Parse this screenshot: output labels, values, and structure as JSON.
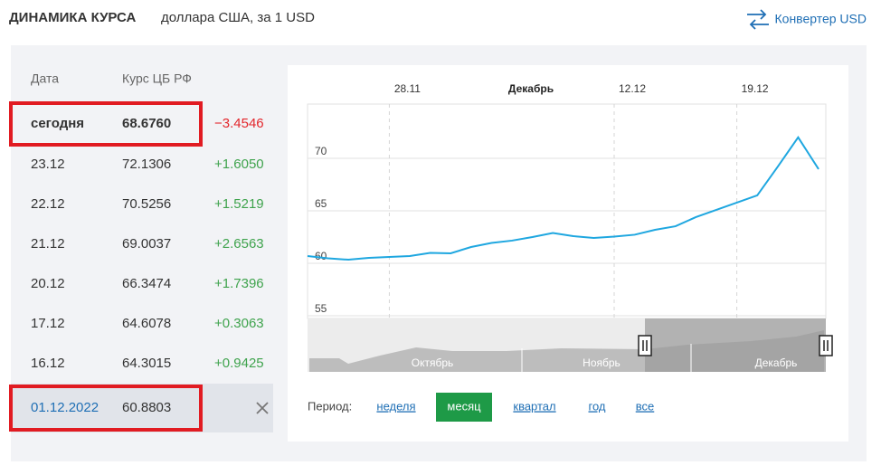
{
  "header": {
    "title": "ДИНАМИКА КУРСА",
    "subtitle": "доллара США, за 1 USD",
    "converter": "Конвертер USD"
  },
  "table": {
    "headers": [
      "Дата",
      "Курс ЦБ РФ"
    ],
    "rows": [
      [
        "сегодня",
        "68.6760",
        "−3.4546"
      ],
      [
        "23.12",
        "72.1306",
        "+1.6050"
      ],
      [
        "22.12",
        "70.5256",
        "+1.5219"
      ],
      [
        "21.12",
        "69.0037",
        "+2.6563"
      ],
      [
        "20.12",
        "66.3474",
        "+1.7396"
      ],
      [
        "17.12",
        "64.6078",
        "+0.3063"
      ],
      [
        "16.12",
        "64.3015",
        "+0.9425"
      ]
    ],
    "selected": [
      "01.12.2022",
      "60.8803"
    ]
  },
  "chart_data": {
    "type": "line",
    "categories": [
      null,
      null,
      null,
      null,
      "28.11",
      null,
      null,
      null,
      null,
      null,
      null,
      null,
      null,
      null,
      null,
      "12.12",
      null,
      null,
      null,
      null,
      null,
      "19.12",
      null,
      null,
      null,
      null
    ],
    "values": [
      60.69,
      60.47,
      60.34,
      60.52,
      60.6,
      60.69,
      60.99,
      60.95,
      61.55,
      61.94,
      62.16,
      62.5,
      62.89,
      62.59,
      62.41,
      62.54,
      62.72,
      63.19,
      63.53,
      64.4,
      65.09,
      65.78,
      66.47,
      69.2,
      72.0,
      68.97
    ],
    "color": "#1fa7e0",
    "ylim": [
      55,
      75
    ],
    "yticks": [
      55,
      60,
      65,
      70
    ],
    "grid": true,
    "annotation": "Декабрь",
    "navigator": [
      "Октябрь",
      "Ноябрь",
      "Декабрь"
    ]
  },
  "period": {
    "label": "Период:",
    "options": [
      "неделя",
      "месяц",
      "квартал",
      "год",
      "все"
    ],
    "active": 1
  }
}
